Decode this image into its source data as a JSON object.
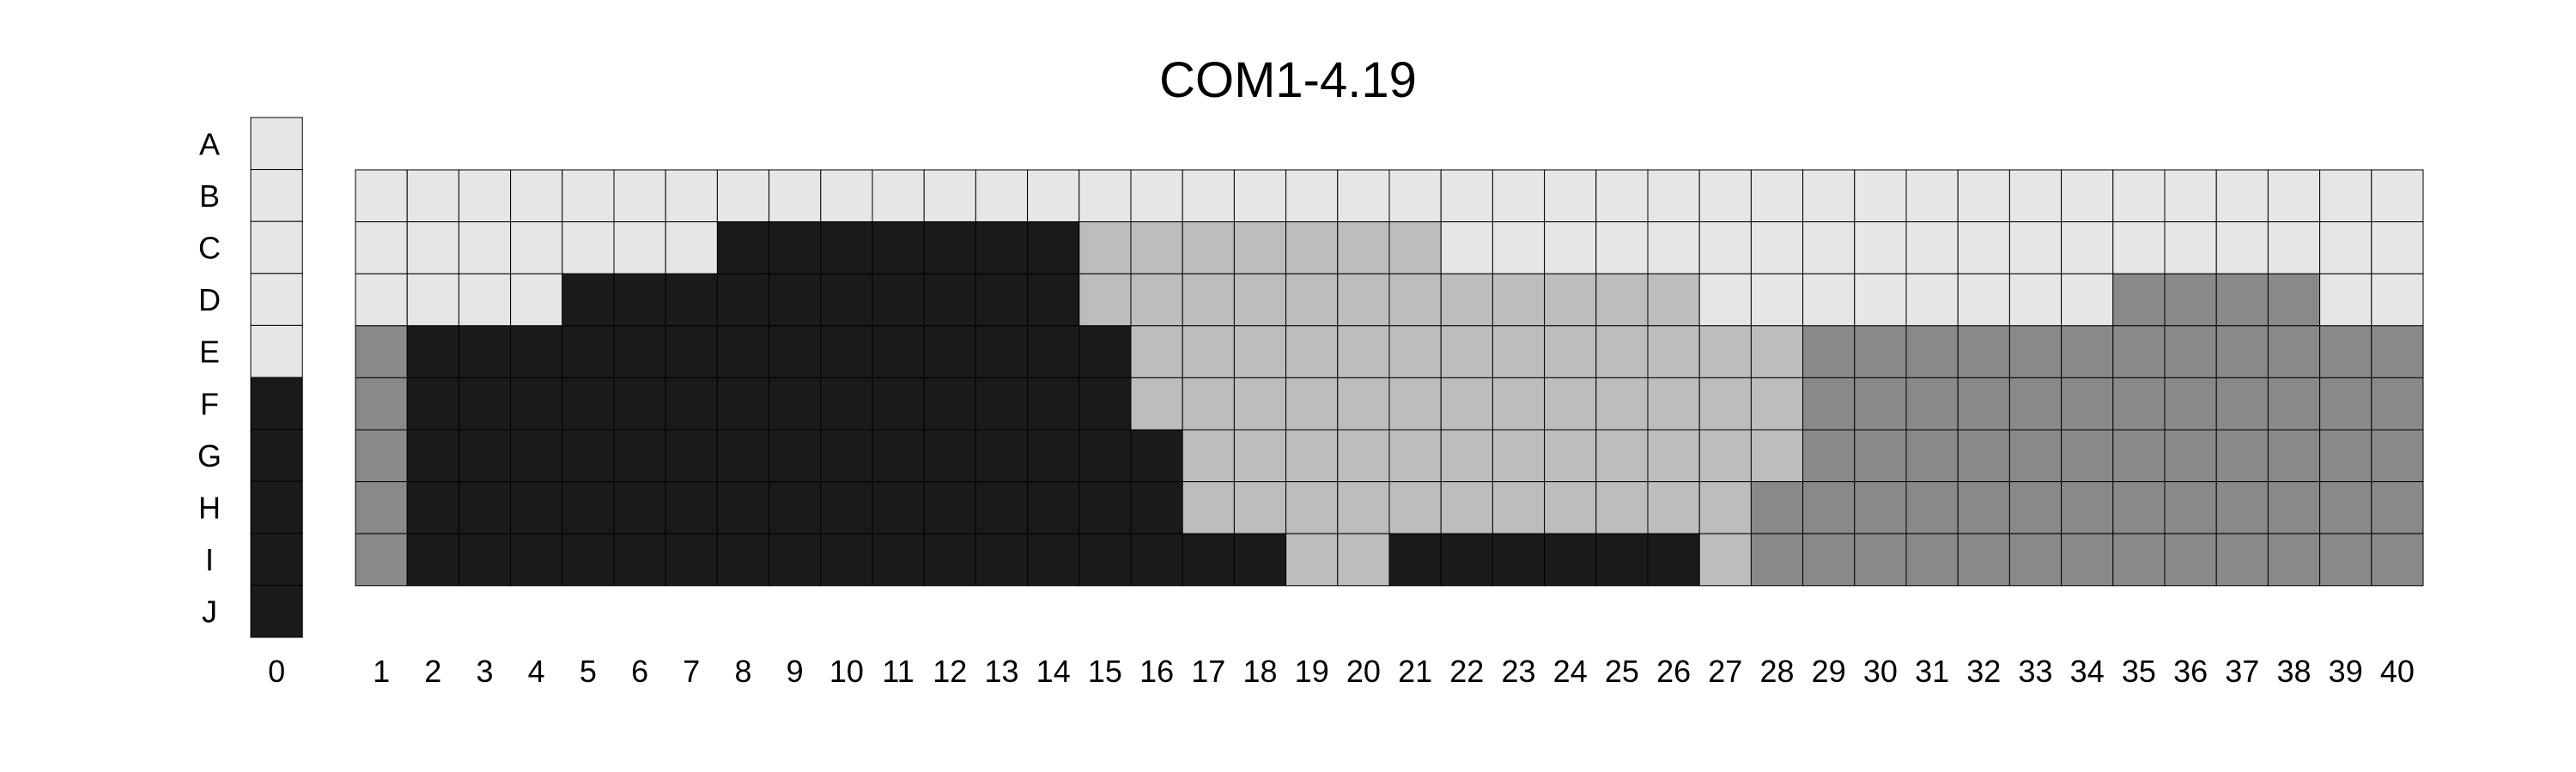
{
  "chart_data": {
    "type": "heatmap",
    "title": "COM1-4.19",
    "row_labels": [
      "A",
      "B",
      "C",
      "D",
      "E",
      "F",
      "G",
      "H",
      "I",
      "J"
    ],
    "reference_column": {
      "label": "0",
      "levels": [
        0,
        0,
        0,
        0,
        0,
        3,
        3,
        3,
        3,
        3
      ]
    },
    "column_labels": [
      "1",
      "2",
      "3",
      "4",
      "5",
      "6",
      "7",
      "8",
      "9",
      "10",
      "11",
      "12",
      "13",
      "14",
      "15",
      "16",
      "17",
      "18",
      "19",
      "20",
      "21",
      "22",
      "23",
      "24",
      "25",
      "26",
      "27",
      "28",
      "29",
      "30",
      "31",
      "32",
      "33",
      "34",
      "35",
      "36",
      "37",
      "38",
      "39",
      "40"
    ],
    "grid_rows": [
      "B",
      "C",
      "D",
      "E",
      "F",
      "G",
      "H",
      "I"
    ],
    "level_colors": [
      "#e6e6e6",
      "#bdbdbd",
      "#898989",
      "#1a1a1a"
    ],
    "grid_line_color": "#000000",
    "grid": [
      [
        0,
        0,
        0,
        0,
        0,
        0,
        0,
        0,
        0,
        0,
        0,
        0,
        0,
        0,
        0,
        0,
        0,
        0,
        0,
        0,
        0,
        0,
        0,
        0,
        0,
        0,
        0,
        0,
        0,
        0,
        0,
        0,
        0,
        0,
        0,
        0,
        0,
        0,
        0,
        0
      ],
      [
        0,
        0,
        0,
        0,
        0,
        0,
        0,
        3,
        3,
        3,
        3,
        3,
        3,
        3,
        1,
        1,
        1,
        1,
        1,
        1,
        1,
        0,
        0,
        0,
        0,
        0,
        0,
        0,
        0,
        0,
        0,
        0,
        0,
        0,
        0,
        0,
        0,
        0,
        0,
        0
      ],
      [
        0,
        0,
        0,
        0,
        3,
        3,
        3,
        3,
        3,
        3,
        3,
        3,
        3,
        3,
        1,
        1,
        1,
        1,
        1,
        1,
        1,
        1,
        1,
        1,
        1,
        1,
        0,
        0,
        0,
        0,
        0,
        0,
        0,
        0,
        2,
        2,
        2,
        2,
        0,
        0
      ],
      [
        2,
        3,
        3,
        3,
        3,
        3,
        3,
        3,
        3,
        3,
        3,
        3,
        3,
        3,
        3,
        1,
        1,
        1,
        1,
        1,
        1,
        1,
        1,
        1,
        1,
        1,
        1,
        1,
        2,
        2,
        2,
        2,
        2,
        2,
        2,
        2,
        2,
        2,
        2,
        2
      ],
      [
        2,
        3,
        3,
        3,
        3,
        3,
        3,
        3,
        3,
        3,
        3,
        3,
        3,
        3,
        3,
        1,
        1,
        1,
        1,
        1,
        1,
        1,
        1,
        1,
        1,
        1,
        1,
        1,
        2,
        2,
        2,
        2,
        2,
        2,
        2,
        2,
        2,
        2,
        2,
        2
      ],
      [
        2,
        3,
        3,
        3,
        3,
        3,
        3,
        3,
        3,
        3,
        3,
        3,
        3,
        3,
        3,
        3,
        1,
        1,
        1,
        1,
        1,
        1,
        1,
        1,
        1,
        1,
        1,
        1,
        2,
        2,
        2,
        2,
        2,
        2,
        2,
        2,
        2,
        2,
        2,
        2
      ],
      [
        2,
        3,
        3,
        3,
        3,
        3,
        3,
        3,
        3,
        3,
        3,
        3,
        3,
        3,
        3,
        3,
        1,
        1,
        1,
        1,
        1,
        1,
        1,
        1,
        1,
        1,
        1,
        2,
        2,
        2,
        2,
        2,
        2,
        2,
        2,
        2,
        2,
        2,
        2,
        2
      ],
      [
        2,
        3,
        3,
        3,
        3,
        3,
        3,
        3,
        3,
        3,
        3,
        3,
        3,
        3,
        3,
        3,
        3,
        3,
        1,
        1,
        3,
        3,
        3,
        3,
        3,
        3,
        1,
        2,
        2,
        2,
        2,
        2,
        2,
        2,
        2,
        2,
        2,
        2,
        2,
        2
      ]
    ],
    "legend": "none",
    "grid_on": true
  }
}
